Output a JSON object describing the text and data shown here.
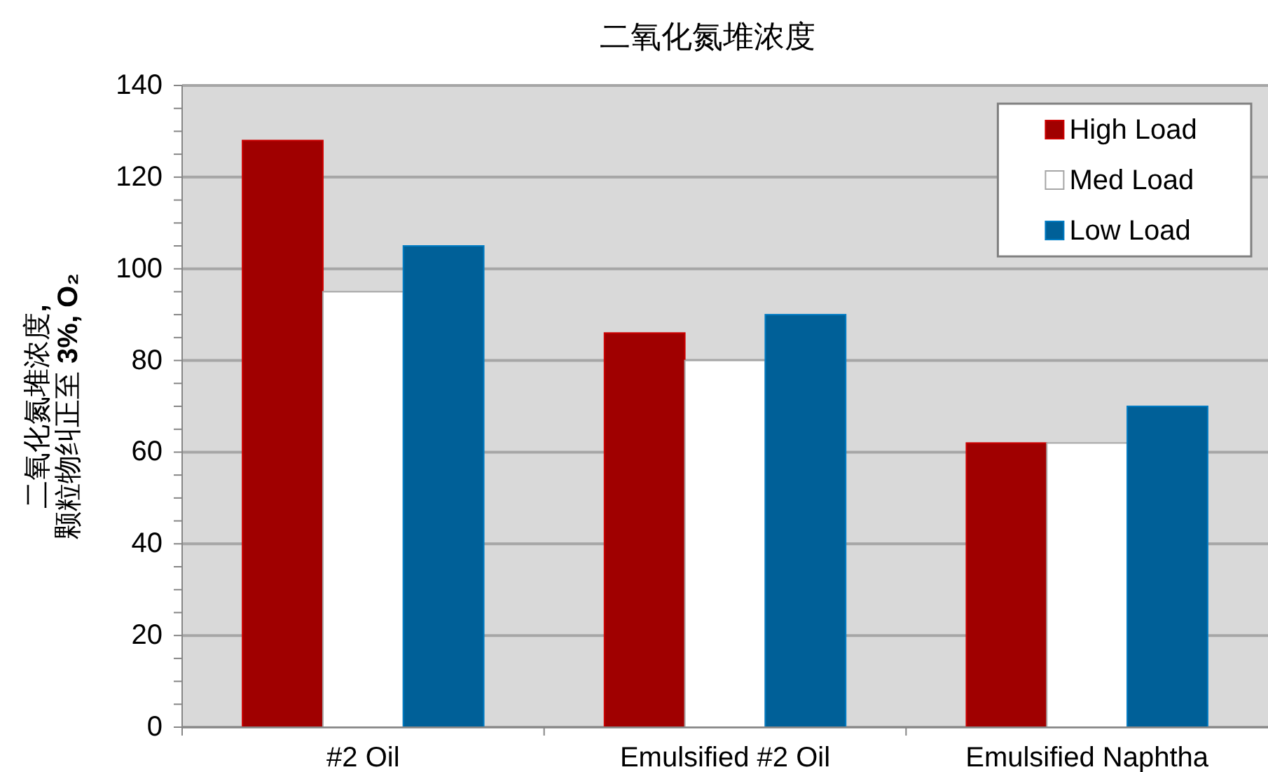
{
  "chart_data": {
    "type": "bar",
    "title": "二氧化氮堆浓度",
    "ylabel": "二氧化氮堆浓度,\n颗粒物纠正至 3%, O₂",
    "categories": [
      "#2 Oil",
      "Emulsified #2 Oil",
      "Emulsified Naphtha"
    ],
    "series": [
      {
        "name": "High Load",
        "color": "#a00000",
        "values": [
          128,
          86,
          62
        ]
      },
      {
        "name": "Med Load",
        "color": "#ffffff",
        "values": [
          95,
          80,
          62
        ]
      },
      {
        "name": "Low Load",
        "color": "#006098",
        "values": [
          105,
          90,
          70
        ]
      }
    ],
    "ylim": [
      0,
      140
    ],
    "yticks": [
      0,
      {
        "value": 5,
        "label": null
      },
      {
        "value": 10,
        "label": null
      },
      {
        "value": 15,
        "label": null
      },
      20,
      {
        "value": 25,
        "label": null
      },
      {
        "value": 30,
        "label": null
      },
      {
        "value": 35,
        "label": null
      },
      40,
      {
        "value": 45,
        "label": null
      },
      {
        "value": 50,
        "label": null
      },
      {
        "value": 55,
        "label": null
      },
      60,
      {
        "value": 65,
        "label": null
      },
      {
        "value": 70,
        "label": null
      },
      {
        "value": 75,
        "label": null
      },
      80,
      {
        "value": 85,
        "label": null
      },
      {
        "value": 90,
        "label": null
      },
      {
        "value": 95,
        "label": null
      },
      100,
      {
        "value": 105,
        "label": null
      },
      {
        "value": 110,
        "label": null
      },
      {
        "value": 115,
        "label": null
      },
      120,
      {
        "value": 125,
        "label": null
      },
      {
        "value": 130,
        "label": null
      },
      {
        "value": 135,
        "label": null
      },
      140
    ],
    "grid": "y",
    "legend": "top right"
  }
}
